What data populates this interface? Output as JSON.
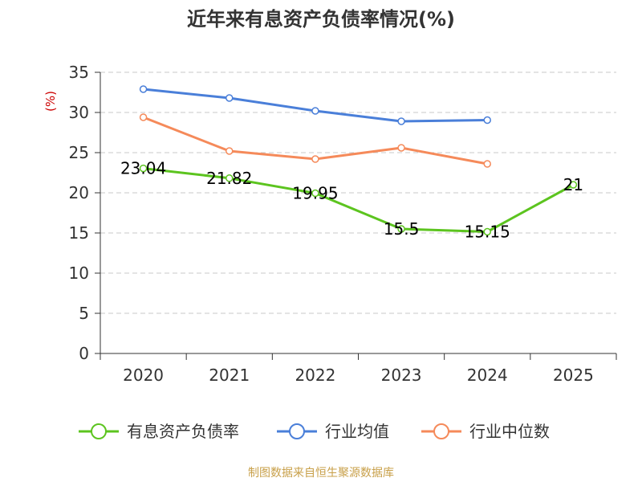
{
  "title": "近年来有息资产负债率情况(%)",
  "source": "制图数据来自恒生聚源数据库",
  "chart_data": {
    "type": "line",
    "title": "近年来有息资产负债率情况(%)",
    "ylabel": "(%)",
    "xlabel": "",
    "ylim": [
      0,
      35
    ],
    "yticks": [
      0,
      5,
      10,
      15,
      20,
      25,
      30,
      35
    ],
    "categories": [
      "2020",
      "2021",
      "2022",
      "2023",
      "2024",
      "2025"
    ],
    "grid": true,
    "legend_position": "bottom",
    "series": [
      {
        "name": "有息资产负债率",
        "color": "#5cc41f",
        "values": [
          23.04,
          21.82,
          19.95,
          15.5,
          15.15,
          21
        ],
        "labels": [
          "23.04",
          "21.82",
          "19.95",
          "15.5",
          "15.15",
          "21"
        ]
      },
      {
        "name": "行业均值",
        "color": "#4a7fd9",
        "values": [
          32.9,
          31.8,
          30.2,
          28.9,
          29.05,
          null
        ]
      },
      {
        "name": "行业中位数",
        "color": "#f58a5a",
        "values": [
          29.4,
          25.2,
          24.2,
          25.6,
          23.6,
          null
        ]
      }
    ]
  }
}
